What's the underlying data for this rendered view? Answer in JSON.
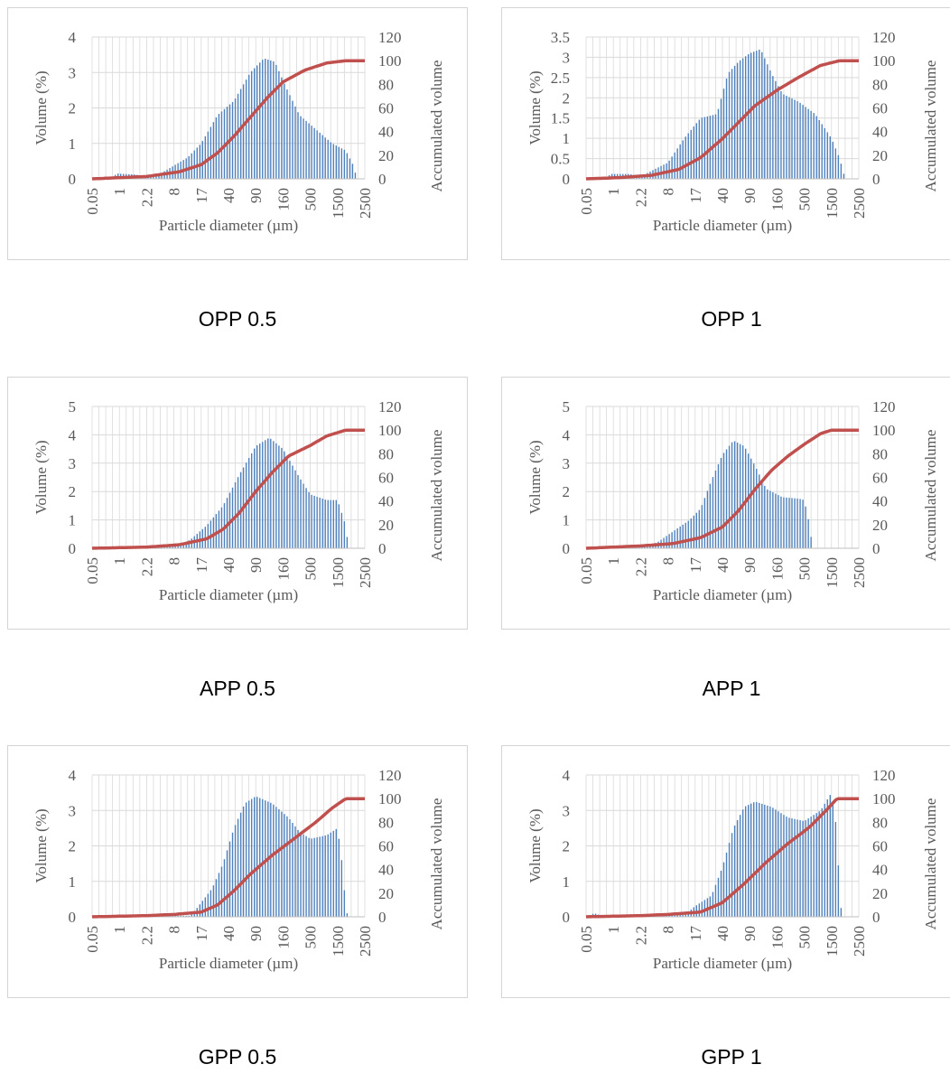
{
  "colors": {
    "bars": "#4f81bd",
    "line": "#c0504d",
    "grid": "#d9d9d9",
    "axis_text": "#595959"
  },
  "chart_data": [
    {
      "type": "bar",
      "caption": "OPP 0.5",
      "xlabel": "Particle diameter (µm)",
      "ylabel": "Volume (%)",
      "y2label": "Accumulated volume",
      "ylim": [
        0,
        4
      ],
      "yticks": [
        "0",
        "1",
        "2",
        "3",
        "4"
      ],
      "y2lim": [
        0,
        120
      ],
      "y2ticks": [
        "0",
        "20",
        "40",
        "60",
        "80",
        "100",
        "120"
      ],
      "xticks": [
        "0.05",
        "1",
        "2.2",
        "8",
        "17",
        "40",
        "90",
        "160",
        "500",
        "1500",
        "2500"
      ],
      "grid": true,
      "bar_peaks": [
        [
          0,
          0
        ],
        [
          0.07,
          0
        ],
        [
          0.09,
          0.15
        ],
        [
          0.16,
          0.12
        ],
        [
          0.2,
          0.05
        ],
        [
          0.24,
          0.1
        ],
        [
          0.35,
          0.6
        ],
        [
          0.4,
          1.0
        ],
        [
          0.46,
          1.8
        ],
        [
          0.52,
          2.2
        ],
        [
          0.58,
          3.0
        ],
        [
          0.63,
          3.4
        ],
        [
          0.67,
          3.3
        ],
        [
          0.71,
          2.6
        ],
        [
          0.76,
          1.8
        ],
        [
          0.82,
          1.4
        ],
        [
          0.88,
          1.0
        ],
        [
          0.93,
          0.8
        ],
        [
          0.96,
          0.35
        ],
        [
          0.97,
          0
        ],
        [
          1.0,
          0
        ]
      ],
      "cumulative": [
        [
          0,
          0
        ],
        [
          0.2,
          2
        ],
        [
          0.32,
          6
        ],
        [
          0.4,
          12
        ],
        [
          0.46,
          22
        ],
        [
          0.52,
          36
        ],
        [
          0.58,
          52
        ],
        [
          0.64,
          68
        ],
        [
          0.7,
          82
        ],
        [
          0.78,
          92
        ],
        [
          0.86,
          98
        ],
        [
          0.93,
          100
        ],
        [
          1.0,
          100
        ]
      ]
    },
    {
      "type": "bar",
      "caption": "OPP 1",
      "xlabel": "Particle diameter (µm)",
      "ylabel": "Volume (%)",
      "y2label": "Accumulated volume",
      "ylim": [
        0,
        3.5
      ],
      "yticks": [
        "0",
        "0.5",
        "1",
        "1.5",
        "2",
        "2.5",
        "3",
        "3.5"
      ],
      "y2lim": [
        0,
        120
      ],
      "y2ticks": [
        "0",
        "20",
        "40",
        "60",
        "80",
        "100",
        "120"
      ],
      "xticks": [
        "0.05",
        "1",
        "2.2",
        "8",
        "17",
        "40",
        "90",
        "160",
        "500",
        "1500",
        "2500"
      ],
      "grid": true,
      "bar_peaks": [
        [
          0,
          0
        ],
        [
          0.07,
          0
        ],
        [
          0.09,
          0.12
        ],
        [
          0.16,
          0.12
        ],
        [
          0.2,
          0.05
        ],
        [
          0.24,
          0.2
        ],
        [
          0.3,
          0.4
        ],
        [
          0.36,
          1.0
        ],
        [
          0.42,
          1.5
        ],
        [
          0.48,
          1.6
        ],
        [
          0.52,
          2.6
        ],
        [
          0.56,
          2.9
        ],
        [
          0.6,
          3.1
        ],
        [
          0.64,
          3.2
        ],
        [
          0.68,
          2.6
        ],
        [
          0.72,
          2.1
        ],
        [
          0.78,
          1.9
        ],
        [
          0.84,
          1.6
        ],
        [
          0.9,
          1.0
        ],
        [
          0.93,
          0.5
        ],
        [
          0.95,
          0
        ],
        [
          1.0,
          0
        ]
      ],
      "cumulative": [
        [
          0,
          0
        ],
        [
          0.12,
          1
        ],
        [
          0.24,
          3
        ],
        [
          0.34,
          8
        ],
        [
          0.42,
          18
        ],
        [
          0.5,
          34
        ],
        [
          0.56,
          48
        ],
        [
          0.62,
          62
        ],
        [
          0.7,
          75
        ],
        [
          0.78,
          86
        ],
        [
          0.86,
          96
        ],
        [
          0.93,
          100
        ],
        [
          1.0,
          100
        ]
      ]
    },
    {
      "type": "bar",
      "caption": "APP 0.5",
      "xlabel": "Particle diameter (µm)",
      "ylabel": "Volume (%)",
      "y2label": "Accumulated volume",
      "ylim": [
        0,
        5
      ],
      "yticks": [
        "0",
        "1",
        "2",
        "3",
        "4",
        "5"
      ],
      "y2lim": [
        0,
        120
      ],
      "y2ticks": [
        "0",
        "20",
        "40",
        "60",
        "80",
        "100",
        "120"
      ],
      "xticks": [
        "0.05",
        "1",
        "2.2",
        "8",
        "17",
        "40",
        "90",
        "160",
        "500",
        "1500",
        "2500"
      ],
      "grid": true,
      "bar_peaks": [
        [
          0,
          0
        ],
        [
          0.3,
          0.05
        ],
        [
          0.36,
          0.3
        ],
        [
          0.42,
          0.8
        ],
        [
          0.48,
          1.5
        ],
        [
          0.54,
          2.6
        ],
        [
          0.6,
          3.6
        ],
        [
          0.65,
          3.9
        ],
        [
          0.7,
          3.5
        ],
        [
          0.76,
          2.5
        ],
        [
          0.8,
          1.9
        ],
        [
          0.86,
          1.7
        ],
        [
          0.9,
          1.7
        ],
        [
          0.93,
          0.8
        ],
        [
          0.94,
          0
        ],
        [
          1.0,
          0
        ]
      ],
      "cumulative": [
        [
          0,
          0
        ],
        [
          0.2,
          1
        ],
        [
          0.32,
          3
        ],
        [
          0.42,
          8
        ],
        [
          0.48,
          16
        ],
        [
          0.54,
          30
        ],
        [
          0.6,
          48
        ],
        [
          0.66,
          64
        ],
        [
          0.72,
          78
        ],
        [
          0.8,
          87
        ],
        [
          0.86,
          95
        ],
        [
          0.93,
          100
        ],
        [
          1.0,
          100
        ]
      ]
    },
    {
      "type": "bar",
      "caption": "APP 1",
      "xlabel": "Particle diameter (µm)",
      "ylabel": "Volume (%)",
      "y2label": "Accumulated volume",
      "ylim": [
        0,
        5
      ],
      "yticks": [
        "0",
        "1",
        "2",
        "3",
        "4",
        "5"
      ],
      "y2lim": [
        0,
        120
      ],
      "y2ticks": [
        "0",
        "20",
        "40",
        "60",
        "80",
        "100",
        "120"
      ],
      "xticks": [
        "0.05",
        "1",
        "2.2",
        "8",
        "17",
        "40",
        "90",
        "160",
        "500",
        "1500",
        "2500"
      ],
      "grid": true,
      "bar_peaks": [
        [
          0,
          0
        ],
        [
          0.02,
          0.05
        ],
        [
          0.2,
          0.05
        ],
        [
          0.26,
          0.2
        ],
        [
          0.32,
          0.6
        ],
        [
          0.38,
          1.0
        ],
        [
          0.42,
          1.4
        ],
        [
          0.46,
          2.4
        ],
        [
          0.5,
          3.3
        ],
        [
          0.54,
          3.8
        ],
        [
          0.58,
          3.6
        ],
        [
          0.62,
          2.9
        ],
        [
          0.66,
          2.1
        ],
        [
          0.72,
          1.8
        ],
        [
          0.78,
          1.75
        ],
        [
          0.8,
          1.7
        ],
        [
          0.82,
          0.8
        ],
        [
          0.83,
          0
        ],
        [
          1.0,
          0
        ]
      ],
      "cumulative": [
        [
          0,
          0
        ],
        [
          0.2,
          2
        ],
        [
          0.32,
          4
        ],
        [
          0.42,
          9
        ],
        [
          0.5,
          18
        ],
        [
          0.56,
          32
        ],
        [
          0.62,
          50
        ],
        [
          0.68,
          66
        ],
        [
          0.74,
          78
        ],
        [
          0.8,
          88
        ],
        [
          0.86,
          97
        ],
        [
          0.9,
          100
        ],
        [
          1.0,
          100
        ]
      ]
    },
    {
      "type": "bar",
      "caption": "GPP 0.5",
      "xlabel": "Particle diameter (µm)",
      "ylabel": "Volume (%)",
      "y2label": "Accumulated volume",
      "ylim": [
        0,
        4
      ],
      "yticks": [
        "0",
        "1",
        "2",
        "3",
        "4"
      ],
      "y2lim": [
        0,
        120
      ],
      "y2ticks": [
        "0",
        "20",
        "40",
        "60",
        "80",
        "100",
        "120"
      ],
      "xticks": [
        "0.05",
        "1",
        "2.2",
        "8",
        "17",
        "40",
        "90",
        "160",
        "500",
        "1500",
        "2500"
      ],
      "grid": true,
      "bar_peaks": [
        [
          0,
          0
        ],
        [
          0.04,
          0.03
        ],
        [
          0.36,
          0.03
        ],
        [
          0.38,
          0.2
        ],
        [
          0.44,
          0.8
        ],
        [
          0.48,
          1.5
        ],
        [
          0.52,
          2.5
        ],
        [
          0.56,
          3.2
        ],
        [
          0.6,
          3.4
        ],
        [
          0.66,
          3.2
        ],
        [
          0.72,
          2.8
        ],
        [
          0.76,
          2.4
        ],
        [
          0.8,
          2.2
        ],
        [
          0.86,
          2.3
        ],
        [
          0.9,
          2.5
        ],
        [
          0.92,
          1.3
        ],
        [
          0.93,
          0.2
        ],
        [
          0.94,
          0
        ],
        [
          1.0,
          0
        ]
      ],
      "cumulative": [
        [
          0,
          0
        ],
        [
          0.2,
          1
        ],
        [
          0.3,
          2
        ],
        [
          0.4,
          4
        ],
        [
          0.46,
          10
        ],
        [
          0.52,
          22
        ],
        [
          0.58,
          36
        ],
        [
          0.66,
          52
        ],
        [
          0.74,
          66
        ],
        [
          0.82,
          80
        ],
        [
          0.88,
          92
        ],
        [
          0.93,
          100
        ],
        [
          1.0,
          100
        ]
      ]
    },
    {
      "type": "bar",
      "caption": "GPP 1",
      "xlabel": "Particle diameter (µm)",
      "ylabel": "Volume (%)",
      "y2label": "Accumulated volume",
      "ylim": [
        0,
        4
      ],
      "yticks": [
        "0",
        "1",
        "2",
        "3",
        "4"
      ],
      "y2lim": [
        0,
        120
      ],
      "y2ticks": [
        "0",
        "20",
        "40",
        "60",
        "80",
        "100",
        "120"
      ],
      "xticks": [
        "0.05",
        "1",
        "2.2",
        "8",
        "17",
        "40",
        "90",
        "160",
        "500",
        "1500",
        "2500"
      ],
      "grid": true,
      "bar_peaks": [
        [
          0,
          0
        ],
        [
          0.03,
          0.1
        ],
        [
          0.05,
          0.05
        ],
        [
          0.36,
          0.05
        ],
        [
          0.4,
          0.3
        ],
        [
          0.46,
          0.6
        ],
        [
          0.5,
          1.4
        ],
        [
          0.54,
          2.5
        ],
        [
          0.58,
          3.1
        ],
        [
          0.62,
          3.25
        ],
        [
          0.68,
          3.1
        ],
        [
          0.74,
          2.8
        ],
        [
          0.8,
          2.7
        ],
        [
          0.86,
          3.0
        ],
        [
          0.9,
          3.5
        ],
        [
          0.92,
          2.4
        ],
        [
          0.93,
          0.5
        ],
        [
          0.94,
          0
        ],
        [
          1.0,
          0
        ]
      ],
      "cumulative": [
        [
          0,
          0
        ],
        [
          0.2,
          1
        ],
        [
          0.3,
          2
        ],
        [
          0.42,
          4
        ],
        [
          0.5,
          12
        ],
        [
          0.58,
          28
        ],
        [
          0.66,
          46
        ],
        [
          0.74,
          62
        ],
        [
          0.82,
          76
        ],
        [
          0.88,
          90
        ],
        [
          0.92,
          100
        ],
        [
          1.0,
          100
        ]
      ]
    }
  ]
}
